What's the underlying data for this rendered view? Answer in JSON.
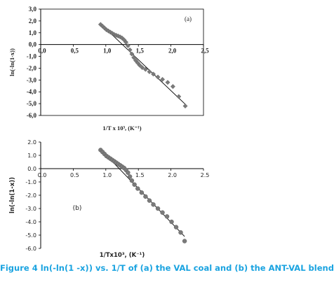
{
  "chart_data": [
    {
      "type": "scatter",
      "panel_label": "(a)",
      "xlabel": "1/T x 10³,  (K⁻¹)",
      "ylabel": "ln(-ln(1-x))",
      "xlim": [
        0,
        2.5
      ],
      "ylim": [
        -6,
        3
      ],
      "x_ticks": [
        "0,0",
        "0,5",
        "1,0",
        "1,5",
        "2,0",
        "2,5"
      ],
      "y_ticks": [
        "3,0",
        "2,0",
        "1,0",
        "0,0",
        "-1,0",
        "-2,0",
        "-3,0",
        "-4,0",
        "-5,0",
        "-6,0"
      ],
      "x_tick_values": [
        0,
        0.5,
        1.0,
        1.5,
        2.0,
        2.5
      ],
      "y_tick_values": [
        3,
        2,
        1,
        0,
        -1,
        -2,
        -3,
        -4,
        -5,
        -6
      ],
      "grid": false,
      "series": [
        {
          "marker": "diamond",
          "color": "#7a7a7a",
          "x": [
            0.92,
            0.95,
            0.98,
            1.01,
            1.04,
            1.07,
            1.1,
            1.13,
            1.16,
            1.19,
            1.22,
            1.25,
            1.28,
            1.31,
            1.34,
            1.37,
            1.4,
            1.43,
            1.46,
            1.49,
            1.52,
            1.56,
            1.61,
            1.67,
            1.73,
            1.8,
            1.87,
            1.95,
            2.03,
            2.12,
            2.22
          ],
          "y": [
            1.7,
            1.55,
            1.4,
            1.25,
            1.15,
            1.05,
            0.95,
            0.85,
            0.78,
            0.72,
            0.65,
            0.55,
            0.4,
            0.2,
            -0.1,
            -0.45,
            -0.8,
            -1.1,
            -1.35,
            -1.55,
            -1.75,
            -1.95,
            -2.1,
            -2.3,
            -2.5,
            -2.75,
            -2.95,
            -3.2,
            -3.55,
            -4.4,
            -5.2
          ]
        }
      ],
      "fit_line": {
        "x": [
          0.92,
          2.22
        ],
        "y": [
          1.75,
          -5.05
        ],
        "color": "#000000"
      }
    },
    {
      "type": "scatter",
      "panel_label": "(b)",
      "xlabel": "1/Tx10³, (K⁻¹)",
      "ylabel": "ln(-ln(1-x))",
      "xlim": [
        0,
        2.5
      ],
      "ylim": [
        -6,
        2
      ],
      "x_ticks": [
        "0.0",
        "0.5",
        "1.0",
        "1.5",
        "2.0",
        "2.5"
      ],
      "y_ticks": [
        "2.0",
        "1.0",
        "0.0",
        "-1.0",
        "-2.0",
        "-3.0",
        "-4.0",
        "-5.0",
        "-6.0"
      ],
      "x_tick_values": [
        0,
        0.5,
        1.0,
        1.5,
        2.0,
        2.5
      ],
      "y_tick_values": [
        2,
        1,
        0,
        -1,
        -2,
        -3,
        -4,
        -5,
        -6
      ],
      "grid": false,
      "series": [
        {
          "marker": "circle",
          "color": "#7a7a7a",
          "x": [
            0.92,
            0.95,
            0.98,
            1.01,
            1.04,
            1.07,
            1.1,
            1.13,
            1.16,
            1.19,
            1.22,
            1.25,
            1.28,
            1.31,
            1.34,
            1.37,
            1.4,
            1.44,
            1.49,
            1.55,
            1.61,
            1.67,
            1.73,
            1.8,
            1.87,
            1.94,
            2.01,
            2.08,
            2.15,
            2.21
          ],
          "y": [
            1.4,
            1.25,
            1.1,
            0.95,
            0.85,
            0.75,
            0.65,
            0.55,
            0.45,
            0.35,
            0.25,
            0.15,
            0.05,
            -0.1,
            -0.3,
            -0.6,
            -0.9,
            -1.2,
            -1.5,
            -1.8,
            -2.1,
            -2.4,
            -2.7,
            -3.0,
            -3.3,
            -3.6,
            -4.0,
            -4.4,
            -4.8,
            -5.45
          ]
        }
      ],
      "fit_line": {
        "x": [
          0.92,
          2.21
        ],
        "y": [
          1.45,
          -5.1
        ],
        "color": "#000000"
      }
    }
  ],
  "caption": "Figure 4 ln(-ln(1 -x)) vs. 1/T of (a) the VAL coal and (b) the ANT-VAL blend"
}
